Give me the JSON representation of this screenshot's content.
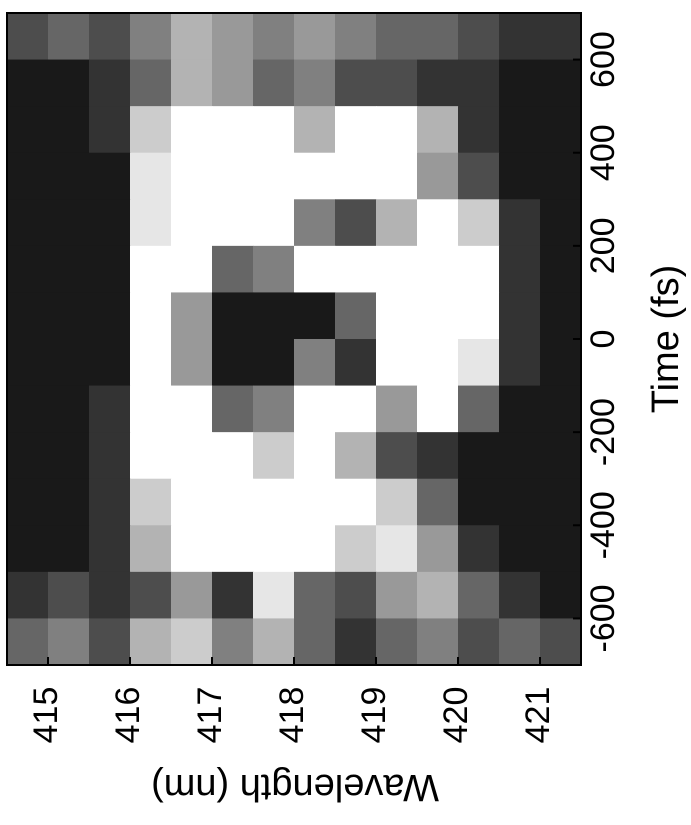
{
  "chart_data": {
    "type": "heatmap",
    "x_label": "Wavelength (nm)",
    "y_label": "Time (fs)",
    "x": [
      414.75,
      415.25,
      415.75,
      416.25,
      416.75,
      417.25,
      417.75,
      418.25,
      418.75,
      419.25,
      419.75,
      420.25,
      420.75,
      421.25
    ],
    "y": [
      650,
      550,
      450,
      350,
      250,
      150,
      50,
      -50,
      -150,
      -250,
      -350,
      -450,
      -550,
      -650
    ],
    "z": [
      [
        0.7,
        0.6,
        0.7,
        0.5,
        0.3,
        0.4,
        0.5,
        0.4,
        0.5,
        0.6,
        0.6,
        0.7,
        0.8,
        0.8
      ],
      [
        0.9,
        0.9,
        0.8,
        0.6,
        0.3,
        0.4,
        0.6,
        0.5,
        0.7,
        0.7,
        0.8,
        0.8,
        0.9,
        0.9
      ],
      [
        0.9,
        0.9,
        0.8,
        0.2,
        0,
        0,
        0,
        0.3,
        0,
        0,
        0.3,
        0.8,
        0.9,
        0.9
      ],
      [
        0.9,
        0.9,
        0.9,
        0.1,
        0,
        0,
        0,
        0,
        0,
        0,
        0.4,
        0.7,
        0.9,
        0.9
      ],
      [
        0.9,
        0.9,
        0.9,
        0.1,
        0,
        0,
        0,
        0.5,
        0.7,
        0.3,
        0,
        0.2,
        0.8,
        0.9
      ],
      [
        0.9,
        0.9,
        0.9,
        0,
        0,
        0.6,
        0.5,
        0,
        0,
        0,
        0,
        0,
        0.8,
        0.9
      ],
      [
        0.9,
        0.9,
        0.9,
        0,
        0.4,
        0.9,
        0.9,
        0.9,
        0.6,
        0,
        0,
        0,
        0.8,
        0.9
      ],
      [
        0.9,
        0.9,
        0.9,
        0,
        0.4,
        0.9,
        0.9,
        0.5,
        0.8,
        0,
        0,
        0.1,
        0.8,
        0.9
      ],
      [
        0.9,
        0.9,
        0.8,
        0,
        0,
        0.6,
        0.5,
        0,
        0,
        0.4,
        0,
        0.6,
        0.9,
        0.9
      ],
      [
        0.9,
        0.9,
        0.8,
        0,
        0,
        0,
        0.2,
        0,
        0.3,
        0.7,
        0.8,
        0.9,
        0.9,
        0.9
      ],
      [
        0.9,
        0.9,
        0.8,
        0.2,
        0,
        0,
        0,
        0,
        0,
        0.2,
        0.6,
        0.9,
        0.9,
        0.9
      ],
      [
        0.9,
        0.9,
        0.8,
        0.3,
        0,
        0,
        0,
        0,
        0.2,
        0.1,
        0.4,
        0.8,
        0.9,
        0.9
      ],
      [
        0.8,
        0.7,
        0.8,
        0.7,
        0.4,
        0.8,
        0.1,
        0.6,
        0.7,
        0.4,
        0.3,
        0.6,
        0.8,
        0.9
      ],
      [
        0.6,
        0.5,
        0.7,
        0.3,
        0.2,
        0.5,
        0.3,
        0.6,
        0.8,
        0.6,
        0.5,
        0.7,
        0.6,
        0.7
      ]
    ],
    "xlim": [
      414.5,
      421.5
    ],
    "ylim": [
      -700,
      700
    ],
    "xticks": [
      415,
      416,
      417,
      418,
      419,
      420,
      421
    ],
    "yticks": [
      -600,
      -400,
      -200,
      0,
      200,
      400,
      600
    ],
    "zlim": [
      0,
      1
    ]
  }
}
